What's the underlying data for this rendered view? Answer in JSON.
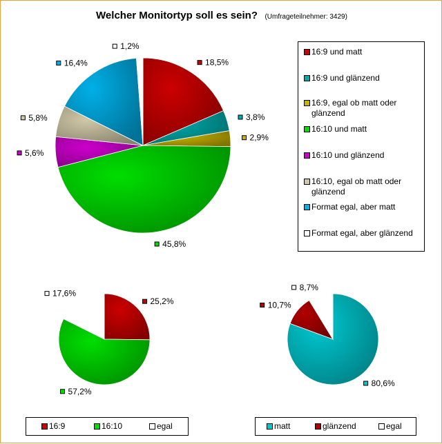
{
  "chart_data": [
    {
      "type": "pie",
      "title": "Welcher Monitortyp soll es sein?",
      "subtitle": "(Umfrageteilnehmer: 3429)",
      "slices": [
        {
          "label": "16:9 und matt",
          "value": 18.5,
          "display": "18,5%",
          "color": "#cc0000"
        },
        {
          "label": "16:9 und glänzend",
          "value": 3.8,
          "display": "3,8%",
          "color": "#00aaaa"
        },
        {
          "label": "16:9, egal ob matt oder glänzend",
          "value": 2.9,
          "display": "2,9%",
          "color": "#c8b400"
        },
        {
          "label": "16:10 und matt",
          "value": 45.8,
          "display": "45,8%",
          "color": "#00dd00"
        },
        {
          "label": "16:10 und glänzend",
          "value": 5.6,
          "display": "5,6%",
          "color": "#cc00cc"
        },
        {
          "label": "16:10, egal ob matt oder glänzend",
          "value": 5.8,
          "display": "5,8%",
          "color": "#d0c8a8"
        },
        {
          "label": "Format egal, aber matt",
          "value": 16.4,
          "display": "16,4%",
          "color": "#00b0e8"
        },
        {
          "label": "Format egal, aber glänzend",
          "value": 1.2,
          "display": "1,2%",
          "color": "#ffffff"
        }
      ],
      "legend": "right"
    },
    {
      "type": "pie",
      "slices": [
        {
          "label": "16:9",
          "value": 25.2,
          "display": "25,2%",
          "color": "#cc0000"
        },
        {
          "label": "16:10",
          "value": 57.2,
          "display": "57,2%",
          "color": "#00dd00"
        },
        {
          "label": "egal",
          "value": 17.6,
          "display": "17,6%",
          "color": "#ffffff"
        }
      ],
      "legend": "bottom"
    },
    {
      "type": "pie",
      "slices": [
        {
          "label": "matt",
          "value": 80.6,
          "display": "80,6%",
          "color": "#00c8d0"
        },
        {
          "label": "glänzend",
          "value": 10.7,
          "display": "10,7%",
          "color": "#b00000"
        },
        {
          "label": "egal",
          "value": 8.7,
          "display": "8,7%",
          "color": "#ffffff"
        }
      ],
      "legend": "bottom"
    }
  ]
}
